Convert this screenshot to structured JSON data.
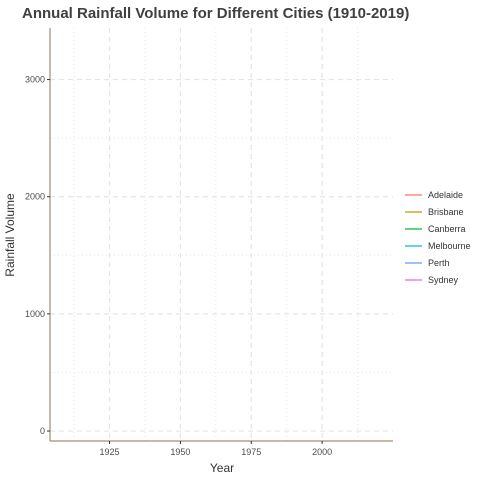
{
  "chart_data": {
    "type": "line",
    "title": "Annual Rainfall Volume for Different Cities (1910-2019)",
    "xlabel": "Year",
    "ylabel": "Rainfall Volume",
    "xlim": [
      1904,
      2025
    ],
    "ylim": [
      -85,
      3440
    ],
    "x_ticks": [
      1925,
      1950,
      1975,
      2000
    ],
    "x_minor_ticks": [
      1912.5,
      1937.5,
      1962.5,
      1987.5,
      2012.5
    ],
    "y_ticks": [
      0,
      1000,
      2000,
      3000
    ],
    "y_minor_ticks": [
      500,
      1500,
      2500
    ],
    "grid": true,
    "legend_position": "right",
    "series": [
      {
        "name": "Adelaide",
        "color": "#F8766D",
        "values": []
      },
      {
        "name": "Brisbane",
        "color": "#B79F00",
        "values": []
      },
      {
        "name": "Canberra",
        "color": "#00BA38",
        "values": []
      },
      {
        "name": "Melbourne",
        "color": "#00BFC4",
        "values": []
      },
      {
        "name": "Perth",
        "color": "#619CFF",
        "values": []
      },
      {
        "name": "Sydney",
        "color": "#F564E3",
        "values": []
      }
    ],
    "axis_color": "#8B7355",
    "grid_color": "#e5e5e5"
  }
}
